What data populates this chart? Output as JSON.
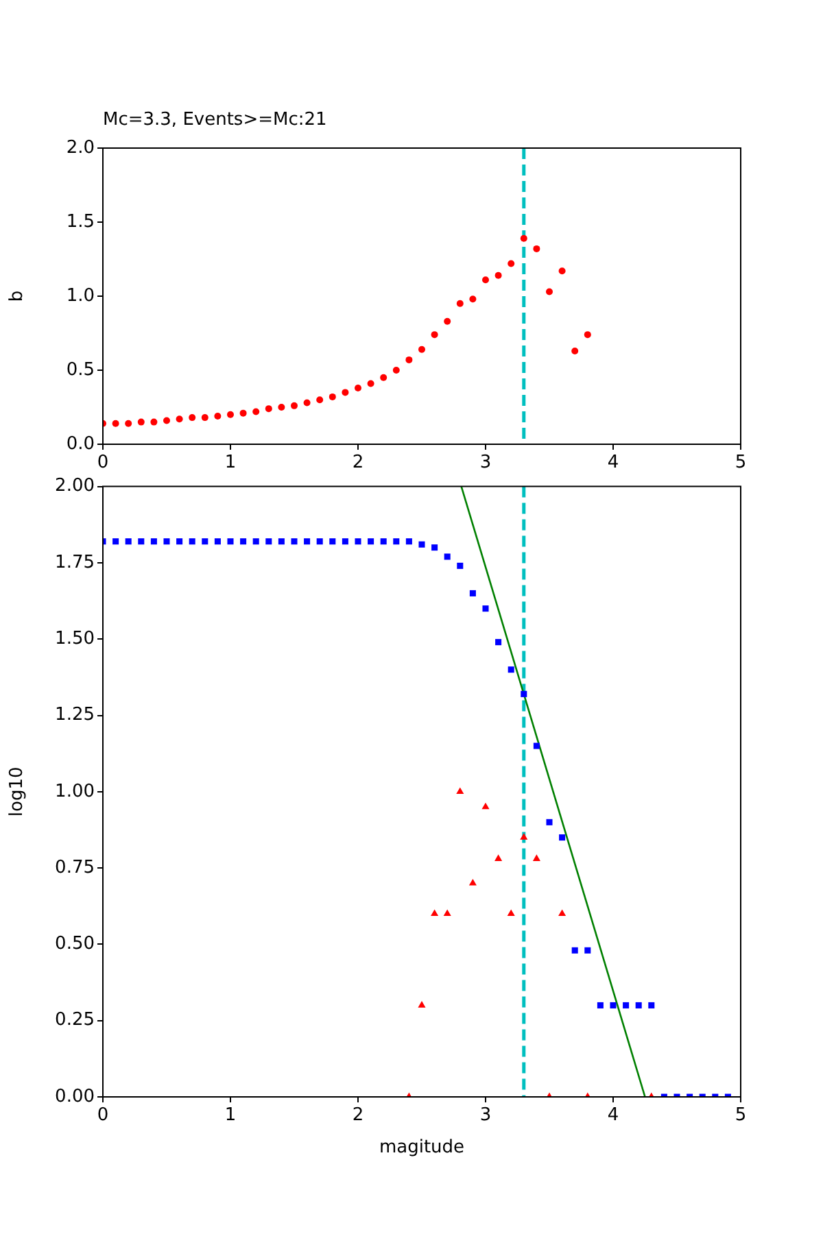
{
  "chart_data": [
    {
      "type": "scatter",
      "title": "Mc=3.3, Events>=Mc:21",
      "ylabel": "b",
      "xlim": [
        0,
        5
      ],
      "xticks": [
        0,
        1,
        2,
        3,
        4,
        5
      ],
      "ylim": [
        0,
        2
      ],
      "yticks": [
        {
          "value": 0,
          "label": "0.0"
        },
        {
          "value": 0.5,
          "label": "0.5"
        },
        {
          "value": 1,
          "label": "1.0"
        },
        {
          "value": 1.5,
          "label": "1.5"
        },
        {
          "value": 2,
          "label": "2.0"
        }
      ],
      "grid": false,
      "legend": false,
      "series": [
        {
          "color": "#ff0000",
          "marker": "circle",
          "x": [
            0,
            0.1,
            0.2,
            0.3,
            0.4,
            0.5,
            0.6,
            0.7,
            0.8,
            0.9,
            1.0,
            1.1,
            1.2,
            1.3,
            1.4,
            1.5,
            1.6,
            1.7,
            1.8,
            1.9,
            2.0,
            2.1,
            2.2,
            2.3,
            2.4,
            2.5,
            2.6,
            2.7,
            2.8,
            2.9,
            3.0,
            3.1,
            3.2,
            3.3,
            3.4,
            3.5,
            3.6,
            3.7,
            3.8
          ],
          "values": [
            0.14,
            0.14,
            0.14,
            0.15,
            0.15,
            0.16,
            0.17,
            0.18,
            0.18,
            0.19,
            0.2,
            0.21,
            0.22,
            0.24,
            0.25,
            0.26,
            0.28,
            0.3,
            0.32,
            0.35,
            0.38,
            0.41,
            0.45,
            0.5,
            0.57,
            0.64,
            0.74,
            0.83,
            0.95,
            0.98,
            1.11,
            1.14,
            1.22,
            1.39,
            1.32,
            1.03,
            1.17,
            0.63,
            0.74
          ]
        }
      ],
      "ref_lines": [
        {
          "axis": "x",
          "value": 3.3,
          "color": "#00bfbf",
          "line_style": "dashed"
        }
      ]
    },
    {
      "type": "scatter",
      "xlabel": "magitude",
      "ylabel": "log10",
      "xlim": [
        0,
        5
      ],
      "xticks": [
        0,
        1,
        2,
        3,
        4,
        5
      ],
      "ylim": [
        0,
        2
      ],
      "yticks": [
        {
          "value": 0,
          "label": "0.00"
        },
        {
          "value": 0.25,
          "label": "0.25"
        },
        {
          "value": 0.5,
          "label": "0.50"
        },
        {
          "value": 0.75,
          "label": "0.75"
        },
        {
          "value": 1,
          "label": "1.00"
        },
        {
          "value": 1.25,
          "label": "1.25"
        },
        {
          "value": 1.5,
          "label": "1.50"
        },
        {
          "value": 1.75,
          "label": "1.75"
        },
        {
          "value": 2,
          "label": "2.00"
        }
      ],
      "grid": false,
      "legend": false,
      "series": [
        {
          "color": "#0000ff",
          "marker": "square",
          "x": [
            0,
            0.1,
            0.2,
            0.3,
            0.4,
            0.5,
            0.6,
            0.7,
            0.8,
            0.9,
            1.0,
            1.1,
            1.2,
            1.3,
            1.4,
            1.5,
            1.6,
            1.7,
            1.8,
            1.9,
            2.0,
            2.1,
            2.2,
            2.3,
            2.4,
            2.5,
            2.6,
            2.7,
            2.8,
            2.9,
            3.0,
            3.1,
            3.2,
            3.3,
            3.4,
            3.5,
            3.6,
            3.7,
            3.8,
            3.9,
            4.0,
            4.1,
            4.2,
            4.3,
            4.4,
            4.5,
            4.6,
            4.7,
            4.8,
            4.9
          ],
          "values": [
            1.82,
            1.82,
            1.82,
            1.82,
            1.82,
            1.82,
            1.82,
            1.82,
            1.82,
            1.82,
            1.82,
            1.82,
            1.82,
            1.82,
            1.82,
            1.82,
            1.82,
            1.82,
            1.82,
            1.82,
            1.82,
            1.82,
            1.82,
            1.82,
            1.82,
            1.81,
            1.8,
            1.77,
            1.74,
            1.65,
            1.6,
            1.49,
            1.4,
            1.32,
            1.15,
            0.9,
            0.85,
            0.48,
            0.48,
            0.3,
            0.3,
            0.3,
            0.3,
            0.3,
            0,
            0,
            0,
            0,
            0,
            0
          ]
        },
        {
          "color": "#ff0000",
          "marker": "triangle",
          "x": [
            2.4,
            2.5,
            2.6,
            2.7,
            2.8,
            2.9,
            3.0,
            3.1,
            3.2,
            3.3,
            3.4,
            3.5,
            3.6,
            3.8,
            4.3
          ],
          "values": [
            0,
            0.3,
            0.6,
            0.6,
            1.0,
            0.7,
            0.95,
            0.78,
            0.6,
            0.85,
            0.78,
            0,
            0.6,
            0,
            0
          ]
        },
        {
          "type": "line",
          "color": "#008000",
          "marker": "none",
          "line_style": "solid",
          "x": [
            2.81,
            4.25
          ],
          "values": [
            2.0,
            0
          ]
        }
      ],
      "ref_lines": [
        {
          "axis": "x",
          "value": 3.3,
          "color": "#00bfbf",
          "line_style": "dashed"
        }
      ]
    }
  ]
}
